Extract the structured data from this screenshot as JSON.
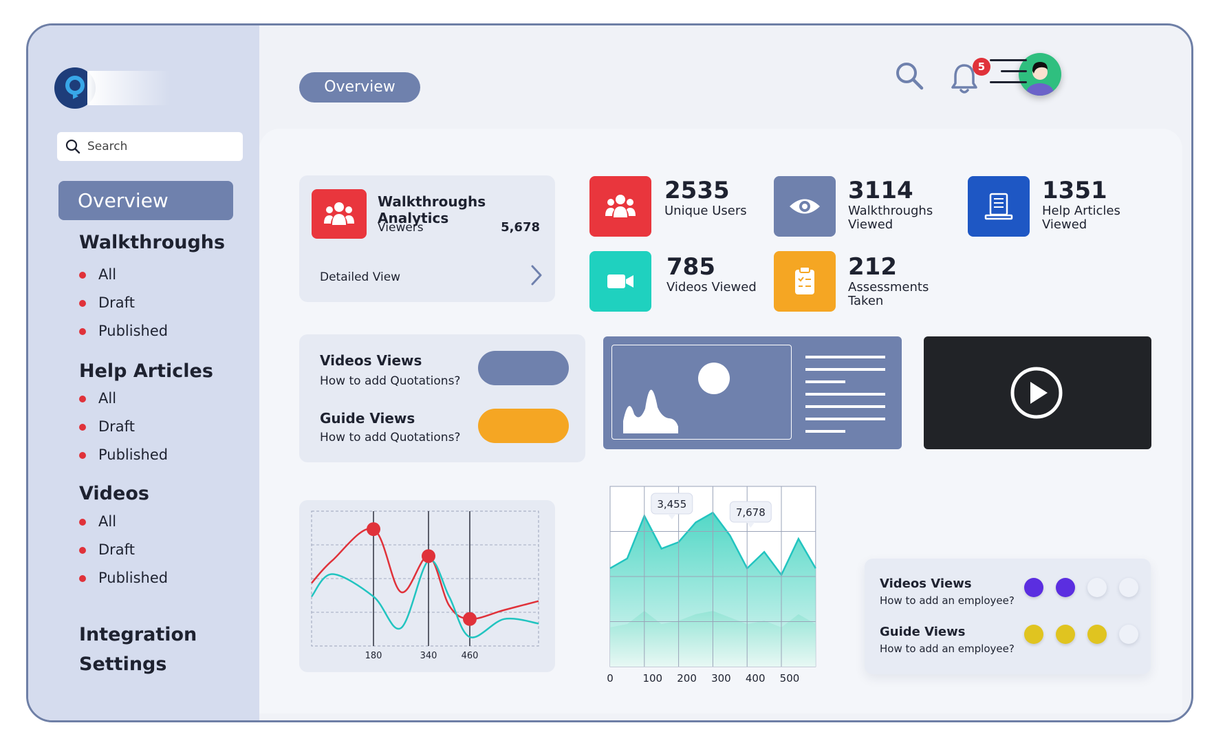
{
  "sidebar": {
    "search_placeholder": "Search",
    "overview_label": "Overview",
    "groups": [
      {
        "title": "Walkthroughs",
        "items": [
          "All",
          "Draft",
          "Published"
        ]
      },
      {
        "title": "Help Articles",
        "items": [
          "All",
          "Draft",
          "Published"
        ]
      },
      {
        "title": "Videos",
        "items": [
          "All",
          "Draft",
          "Published"
        ]
      }
    ],
    "integration_line1": "Integration",
    "integration_line2": "Settings"
  },
  "header": {
    "tab_label": "Overview",
    "notification_count": "5",
    "icons": [
      "search-icon",
      "bell-icon",
      "avatar",
      "menu-icon"
    ]
  },
  "analytics_card": {
    "title": "Walkthroughs Analytics",
    "viewers_label": "Viewers",
    "viewers_value": "5,678",
    "detail_link": "Detailed View"
  },
  "stats": [
    {
      "value": "2535",
      "label": "Unique Users",
      "color": "#e9363d",
      "icon": "users-icon"
    },
    {
      "value": "3114",
      "label1": "Walkthroughs",
      "label2": "Viewed",
      "color": "#6f81ad",
      "icon": "eye-icon"
    },
    {
      "value": "1351",
      "label1": "Help Articles",
      "label2": "Viewed",
      "color": "#1e57c4",
      "icon": "document-icon"
    },
    {
      "value": "785",
      "label": "Videos Viewed",
      "color": "#1fd1bf",
      "icon": "video-camera-icon"
    },
    {
      "value": "212",
      "label1": "Assessments",
      "label2": "Taken",
      "color": "#f5a623",
      "icon": "clipboard-icon"
    }
  ],
  "views_card": {
    "videos_title": "Videos Views",
    "videos_sub": "How to add Quotations?",
    "guide_title": "Guide Views",
    "guide_sub": "How to add Quotations?",
    "videos_color": "#6f81ad",
    "guide_color": "#f5a623"
  },
  "employee_card": {
    "videos_title": "Videos Views",
    "videos_sub": "How to add an employee?",
    "guide_title": "Guide Views",
    "guide_sub": "How to add an employee?",
    "videos_rating": 2,
    "guide_rating": 3,
    "max_rating": 4
  },
  "chart_data": [
    {
      "type": "line",
      "x": [
        0,
        60,
        180,
        260,
        340,
        400,
        460,
        560,
        660
      ],
      "series": [
        {
          "values": [
            70,
            95,
            130,
            60,
            100,
            45,
            30,
            40,
            50
          ],
          "color": "#e0323a"
        },
        {
          "values": [
            55,
            80,
            55,
            20,
            95,
            55,
            10,
            30,
            25
          ],
          "color": "#22c4c0"
        }
      ],
      "markers": [
        {
          "x": 180,
          "y": 130
        },
        {
          "x": 340,
          "y": 100
        },
        {
          "x": 460,
          "y": 30
        }
      ],
      "tick_labels": [
        "180",
        "340",
        "460"
      ],
      "grid": true
    },
    {
      "type": "area",
      "x": [
        0,
        50,
        100,
        150,
        200,
        250,
        300,
        350,
        400,
        450,
        500,
        550,
        600
      ],
      "series": [
        {
          "values": [
            3.0,
            3.3,
            4.6,
            3.6,
            3.8,
            4.4,
            4.7,
            4.0,
            3.0,
            3.5,
            2.8,
            3.9,
            3.0
          ],
          "color": "#22c4c0"
        },
        {
          "values": [
            1.2,
            1.3,
            1.7,
            1.3,
            1.4,
            1.6,
            1.7,
            1.5,
            1.3,
            1.4,
            1.2,
            1.6,
            1.3
          ],
          "color": "#7fe0cf"
        }
      ],
      "annotations": [
        {
          "x": 100,
          "label": "3,455"
        },
        {
          "x": 350,
          "label": "7,678"
        }
      ],
      "tick_labels": [
        "0",
        "100",
        "200",
        "300",
        "400",
        "500"
      ],
      "grid": true
    }
  ]
}
